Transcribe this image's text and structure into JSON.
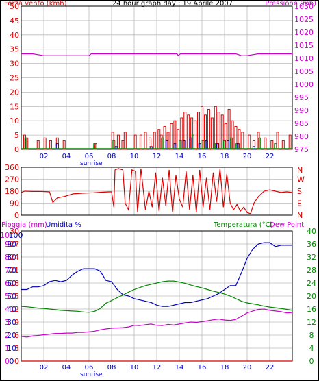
{
  "colors": {
    "wind": "#dd0000",
    "pressure": "#cc00cc",
    "gust_green": "#008800",
    "gust_blue": "#0000bb",
    "direction": "#dd0000",
    "humidity": "#0000bb",
    "temperature": "#008800",
    "dewpoint": "#cc00cc",
    "rain": "#dd0000",
    "grid": "#bbbbbb",
    "axis": "#000000"
  },
  "chart_data": [
    {
      "type": "line",
      "id": "wind_pressure",
      "title": "24 hour graph day : 19 Aprile 2007",
      "left_label": "Forza vento (kmh)",
      "right_label": "Pressione (mb)",
      "left_ticks": [
        0,
        5,
        10,
        15,
        20,
        25,
        30,
        35,
        40,
        45,
        50
      ],
      "ylim_left": [
        0,
        50
      ],
      "right_ticks": [
        975,
        980,
        985,
        990,
        995,
        1000,
        1005,
        1010,
        1015,
        1020,
        1025,
        1030
      ],
      "ylim_right": [
        975,
        1030
      ],
      "xlim": [
        0,
        24
      ],
      "x_ticks": [
        2,
        4,
        6,
        8,
        10,
        12,
        14,
        16,
        18,
        20,
        22
      ],
      "x_tick_labels": [
        "02",
        "04",
        "06",
        "08",
        "10",
        "12",
        "14",
        "16",
        "18",
        "20",
        "22"
      ],
      "sunrise_label": "sunrise",
      "sunrise_hour": 6.2,
      "grid": true,
      "series": [
        {
          "name": "Pressione (mb)",
          "axis": "right",
          "x": [
            0,
            1,
            2,
            3,
            4,
            5,
            6,
            6.2,
            7,
            8,
            9,
            10,
            11,
            12,
            13,
            13.8,
            13.9,
            14.1,
            15,
            16,
            17,
            18,
            19,
            19.5,
            20,
            21,
            22,
            23,
            24
          ],
          "y": [
            1011.7,
            1011.7,
            1011,
            1011,
            1011,
            1011,
            1011,
            1011.7,
            1011.7,
            1011.7,
            1011.7,
            1011.7,
            1011.7,
            1011.7,
            1011.7,
            1011.7,
            1011,
            1011.7,
            1011.7,
            1011.7,
            1011.7,
            1011.7,
            1011.7,
            1011,
            1011,
            1011.7,
            1011.7,
            1011.7,
            1011.7
          ]
        },
        {
          "name": "wind gust bars (red)",
          "axis": "left",
          "render": "bars",
          "x": [
            0.3,
            0.5,
            1.5,
            2.1,
            2.6,
            3.2,
            3.8,
            6.6,
            8.1,
            8.6,
            9.0,
            9.2,
            10.1,
            10.6,
            11.0,
            11.4,
            11.8,
            12.2,
            12.4,
            12.7,
            13.0,
            13.3,
            13.6,
            13.9,
            14.2,
            14.5,
            14.8,
            15.1,
            15.4,
            15.7,
            16.0,
            16.3,
            16.6,
            16.9,
            17.2,
            17.5,
            17.8,
            18.1,
            18.4,
            18.7,
            19.0,
            19.3,
            19.6,
            20.2,
            20.6,
            21.0,
            21.6,
            22.2,
            22.7,
            23.2,
            23.8
          ],
          "y": [
            5,
            4,
            3,
            4,
            3,
            4,
            3,
            2,
            6,
            5,
            3,
            6,
            5,
            5,
            6,
            4,
            6,
            7,
            5,
            8,
            6,
            9,
            10,
            7,
            11,
            13,
            12,
            11,
            10,
            13,
            15,
            12,
            14,
            11,
            15,
            13,
            12,
            9,
            14,
            10,
            8,
            7,
            6,
            5,
            3,
            6,
            4,
            3,
            6,
            3,
            5
          ]
        },
        {
          "name": "wind average bars (green)",
          "axis": "left",
          "render": "bars",
          "x": [
            0.4,
            6.5,
            8.2,
            12.5,
            14.1,
            15.2,
            16.1,
            17.1,
            18.0,
            18.6,
            19.1,
            21.1,
            22.5
          ],
          "y": [
            4,
            2,
            3,
            4,
            3,
            5,
            3,
            2,
            3,
            4,
            2,
            4,
            2
          ]
        },
        {
          "name": "wind direction bars (blue)",
          "axis": "left",
          "render": "bars",
          "x": [
            3.2,
            8.4,
            11.5,
            12.9,
            13.6,
            14.4,
            15.0,
            15.8,
            16.4,
            17.4,
            18.3,
            19.2,
            20.6
          ],
          "y": [
            2,
            1,
            1,
            3,
            2,
            3,
            4,
            2,
            3,
            2,
            3,
            2,
            1
          ]
        }
      ]
    },
    {
      "type": "line",
      "id": "direction",
      "left_ticks": [
        0,
        90,
        180,
        270,
        360
      ],
      "left_tick_labels": [
        "0",
        "90",
        "180",
        "270",
        "360"
      ],
      "ylim": [
        0,
        360
      ],
      "right_labels": [
        "N",
        "W",
        "S",
        "E",
        "N"
      ],
      "xlim": [
        0,
        24
      ],
      "grid": true,
      "series": [
        {
          "name": "direzione vento",
          "x": [
            0,
            0.3,
            1,
            1.8,
            2.5,
            2.8,
            3.2,
            3.8,
            4.6,
            5.5,
            6.4,
            7.0,
            7.8,
            8.0,
            8.2,
            8.3,
            8.6,
            9.0,
            9.2,
            9.5,
            9.8,
            10.1,
            10.3,
            10.6,
            11.0,
            11.3,
            11.6,
            11.9,
            12.2,
            12.5,
            12.8,
            13.1,
            13.4,
            13.7,
            14.0,
            14.3,
            14.6,
            14.9,
            15.2,
            15.5,
            15.8,
            16.1,
            16.4,
            16.7,
            17.0,
            17.3,
            17.6,
            17.9,
            18.2,
            18.5,
            18.8,
            19.1,
            19.4,
            19.7,
            20.0,
            20.3,
            20.6,
            21.0,
            21.5,
            22.0,
            22.5,
            23.0,
            23.5,
            24.0
          ],
          "y": [
            170,
            180,
            178,
            178,
            175,
            95,
            130,
            140,
            160,
            165,
            168,
            172,
            175,
            175,
            60,
            340,
            350,
            340,
            90,
            40,
            340,
            330,
            20,
            350,
            40,
            180,
            60,
            320,
            30,
            280,
            70,
            340,
            20,
            300,
            120,
            60,
            330,
            40,
            300,
            20,
            340,
            60,
            280,
            40,
            320,
            100,
            350,
            60,
            310,
            90,
            40,
            80,
            30,
            60,
            20,
            10,
            90,
            140,
            180,
            190,
            180,
            170,
            175,
            170
          ]
        }
      ]
    },
    {
      "type": "line",
      "id": "weather",
      "labels": [
        "Pioggia (mm)",
        "Umidita %",
        "Temperatura (°C)",
        "Dew Point"
      ],
      "rain_ticks": [
        0,
        1,
        2,
        3,
        4,
        5,
        6,
        7,
        8,
        9,
        10
      ],
      "ylim_rain": [
        0,
        10
      ],
      "humidity_ticks": [
        0,
        10,
        20,
        30,
        40,
        50,
        60,
        70,
        80,
        90,
        100
      ],
      "ylim_humidity": [
        0,
        100
      ],
      "inner_ticks": [
        0,
        3,
        6,
        9,
        12,
        15,
        18,
        21,
        24,
        27,
        30
      ],
      "ylim_inner": [
        0,
        30
      ],
      "temp_ticks": [
        0,
        4,
        8,
        12,
        16,
        20,
        24,
        28,
        32,
        36,
        40
      ],
      "ylim_temp": [
        0,
        40
      ],
      "xlim": [
        0,
        24
      ],
      "x_ticks": [
        2,
        4,
        6,
        8,
        10,
        12,
        14,
        16,
        18,
        20,
        22
      ],
      "x_tick_labels": [
        "02",
        "04",
        "06",
        "08",
        "10",
        "12",
        "14",
        "16",
        "18",
        "20",
        "22"
      ],
      "sunrise_label": "sunrise",
      "sunrise_hour": 6.2,
      "grid": true,
      "series": [
        {
          "name": "Umidita %",
          "axis": "humidity",
          "x": [
            0,
            0.5,
            1,
            1.5,
            2,
            2.5,
            3,
            3.5,
            4,
            4.5,
            5,
            5.5,
            6,
            6.5,
            7,
            7.5,
            8,
            8.5,
            9,
            9.5,
            10,
            10.5,
            11,
            11.5,
            12,
            12.5,
            13,
            13.5,
            14,
            14.5,
            15,
            15.5,
            16,
            16.5,
            17,
            17.5,
            18,
            18.5,
            19,
            19.5,
            20,
            20.5,
            21,
            21.5,
            22,
            22.5,
            23,
            23.5,
            24
          ],
          "y": [
            55,
            55,
            57,
            57,
            58,
            61,
            62,
            61,
            62,
            66,
            69,
            71,
            71,
            71,
            69,
            62,
            61,
            55,
            51,
            50,
            48,
            47,
            46,
            45,
            43,
            42,
            42,
            43,
            44,
            45,
            45,
            46,
            47,
            48,
            50,
            52,
            55,
            58,
            58,
            68,
            79,
            86,
            90,
            91,
            91,
            88,
            89,
            89,
            89
          ]
        },
        {
          "name": "Temperatura (°C)",
          "axis": "temp",
          "x": [
            0,
            0.5,
            1,
            1.5,
            2,
            2.5,
            3,
            3.5,
            4,
            4.5,
            5,
            5.5,
            6,
            6.5,
            7,
            7.5,
            8,
            8.5,
            9,
            9.5,
            10,
            10.5,
            11,
            11.5,
            12,
            12.5,
            13,
            13.5,
            14,
            14.5,
            15,
            15.5,
            16,
            16.5,
            17,
            17.5,
            18,
            18.5,
            19,
            19.5,
            20,
            20.5,
            21,
            21.5,
            22,
            22.5,
            23,
            23.5,
            24
          ],
          "y": [
            16.8,
            16.7,
            16.5,
            16.3,
            16.2,
            16.0,
            15.8,
            15.6,
            15.5,
            15.4,
            15.3,
            15.1,
            15.0,
            15.3,
            16.2,
            17.8,
            18.6,
            19.5,
            20.3,
            21.2,
            22.0,
            22.6,
            23.2,
            23.6,
            24.0,
            24.4,
            24.6,
            24.6,
            24.3,
            23.9,
            23.4,
            22.9,
            22.5,
            22.0,
            21.5,
            21.1,
            20.6,
            20.0,
            19.2,
            18.4,
            17.9,
            17.6,
            17.3,
            16.9,
            16.6,
            16.4,
            16.2,
            15.9,
            15.6
          ]
        },
        {
          "name": "Dew Point",
          "axis": "temp",
          "x": [
            0,
            0.5,
            1,
            1.5,
            2,
            2.5,
            3,
            3.5,
            4,
            4.5,
            5,
            5.5,
            6,
            6.5,
            7,
            7.5,
            8,
            8.5,
            9,
            9.5,
            10,
            10.5,
            11,
            11.5,
            12,
            12.5,
            13,
            13.5,
            14,
            14.5,
            15,
            15.5,
            16,
            16.5,
            17,
            17.5,
            18,
            18.5,
            19,
            19.5,
            20,
            20.5,
            21,
            21.5,
            22,
            22.5,
            23,
            23.5,
            24
          ],
          "y": [
            7.6,
            7.4,
            7.7,
            7.9,
            8.1,
            8.3,
            8.5,
            8.5,
            8.6,
            8.6,
            8.8,
            8.8,
            9.0,
            9.2,
            9.6,
            9.9,
            10.1,
            10.2,
            10.3,
            10.5,
            11.0,
            10.9,
            11.2,
            11.4,
            11.0,
            10.9,
            11.3,
            11.1,
            11.4,
            11.7,
            12.0,
            11.9,
            12.1,
            12.4,
            12.7,
            12.9,
            12.6,
            12.5,
            12.8,
            13.8,
            14.8,
            15.4,
            15.9,
            16.0,
            15.6,
            15.4,
            15.2,
            14.8,
            14.9
          ]
        },
        {
          "name": "Pioggia (mm)",
          "axis": "rain",
          "x": [
            0,
            24
          ],
          "y": [
            0,
            0
          ]
        }
      ]
    }
  ]
}
